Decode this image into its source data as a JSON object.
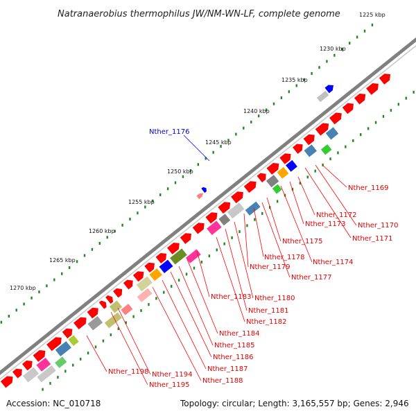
{
  "map": {
    "title": "Natranaerobius thermophilus JW/NM-WN-LF, complete genome",
    "accession": "Accession: NC_010718",
    "summary": "Topology: circular; Length: 3,165,557 bp; Genes: 2,946"
  },
  "scale_labels": [
    "1225 kbp",
    "1230 kbp",
    "1235 kbp",
    "1240 kbp",
    "1245 kbp",
    "1250 kbp",
    "1255 kbp",
    "1260 kbp",
    "1265 kbp",
    "1270 kbp"
  ],
  "highlighted_gene": "Nther_1176",
  "gene_labels": [
    "Nther_1169",
    "Nther_1170",
    "Nther_1171",
    "Nther_1172",
    "Nther_1173",
    "Nther_1174",
    "Nther_1175",
    "Nther_1177",
    "Nther_1178",
    "Nther_1179",
    "Nther_1180",
    "Nther_1181",
    "Nther_1182",
    "Nther_1183",
    "Nther_1184",
    "Nther_1185",
    "Nther_1186",
    "Nther_1187",
    "Nther_1188",
    "Nther_1194",
    "Nther_1195",
    "Nther_1198"
  ],
  "colors": {
    "gene_forward": "#ff0000",
    "label_line": "#ff0000",
    "highlight": "#0000ff",
    "backbone": "#808080",
    "gc_dots": "#228822"
  }
}
